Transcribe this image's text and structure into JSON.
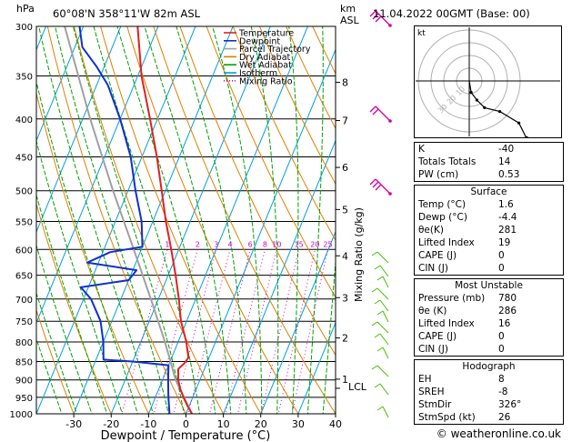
{
  "header": {
    "location": "60°08'N  358°11'W  82m  ASL",
    "datetime": "11.04.2022  00GMT  (Base: 00)"
  },
  "axes": {
    "pressure_unit": "hPa",
    "height_unit_line1": "km",
    "height_unit_line2": "ASL",
    "mixing_ratio_label": "Mixing Ratio (g/kg)",
    "xlabel": "Dewpoint / Temperature (°C)",
    "lcl_label": "LCL"
  },
  "legend": [
    {
      "label": "Temperature",
      "color": "#e02020",
      "style": "solid"
    },
    {
      "label": "Dewpoint",
      "color": "#1030d0",
      "style": "solid"
    },
    {
      "label": "Parcel Trajectory",
      "color": "#a0a0a0",
      "style": "solid"
    },
    {
      "label": "Dry Adiabat",
      "color": "#e08000",
      "style": "solid"
    },
    {
      "label": "Wet Adiabat",
      "color": "#00a000",
      "style": "solid"
    },
    {
      "label": "Isotherm",
      "color": "#00a0e0",
      "style": "solid"
    },
    {
      "label": "Mixing Ratio",
      "color": "#d000d0",
      "style": "dotted"
    }
  ],
  "chart_data": {
    "type": "skew-t",
    "pressure_levels": [
      300,
      350,
      400,
      450,
      500,
      550,
      600,
      650,
      700,
      750,
      800,
      850,
      900,
      950,
      1000
    ],
    "temperature_ticks": [
      -30,
      -20,
      -10,
      0,
      10,
      20,
      30,
      40
    ],
    "xlim": [
      -40,
      40
    ],
    "ylim_hpa": [
      1000,
      300
    ],
    "height_km_ticks": [
      {
        "label": "8",
        "p": 357
      },
      {
        "label": "7",
        "p": 402
      },
      {
        "label": "6",
        "p": 465
      },
      {
        "label": "5",
        "p": 530
      },
      {
        "label": "4",
        "p": 612
      },
      {
        "label": "3",
        "p": 697
      },
      {
        "label": "2",
        "p": 790
      },
      {
        "label": "1",
        "p": 898
      }
    ],
    "mixing_ratio_values": [
      "1",
      "2",
      "3",
      "4",
      "6",
      "8",
      "10",
      "15",
      "20",
      "25"
    ],
    "temperature_profile": [
      {
        "p": 1000,
        "t": 1.6
      },
      {
        "p": 975,
        "t": -0.5
      },
      {
        "p": 950,
        "t": -2.5
      },
      {
        "p": 925,
        "t": -4.3
      },
      {
        "p": 900,
        "t": -5.8
      },
      {
        "p": 870,
        "t": -7.0
      },
      {
        "p": 855,
        "t": -6.0
      },
      {
        "p": 840,
        "t": -5.5
      },
      {
        "p": 800,
        "t": -7.8
      },
      {
        "p": 750,
        "t": -11.5
      },
      {
        "p": 700,
        "t": -14.5
      },
      {
        "p": 650,
        "t": -18.0
      },
      {
        "p": 600,
        "t": -22.0
      },
      {
        "p": 550,
        "t": -26.5
      },
      {
        "p": 500,
        "t": -31.0
      },
      {
        "p": 450,
        "t": -36.0
      },
      {
        "p": 400,
        "t": -42.0
      },
      {
        "p": 350,
        "t": -49.0
      },
      {
        "p": 300,
        "t": -55.5
      }
    ],
    "dewpoint_profile": [
      {
        "p": 1000,
        "t": -4.4
      },
      {
        "p": 950,
        "t": -6.5
      },
      {
        "p": 900,
        "t": -8.5
      },
      {
        "p": 860,
        "t": -10.0
      },
      {
        "p": 850,
        "t": -20.0
      },
      {
        "p": 845,
        "t": -28.0
      },
      {
        "p": 800,
        "t": -30.0
      },
      {
        "p": 750,
        "t": -33.0
      },
      {
        "p": 700,
        "t": -38.0
      },
      {
        "p": 675,
        "t": -42.0
      },
      {
        "p": 660,
        "t": -30.0
      },
      {
        "p": 640,
        "t": -29.0
      },
      {
        "p": 625,
        "t": -43.0
      },
      {
        "p": 605,
        "t": -38.0
      },
      {
        "p": 595,
        "t": -30.0
      },
      {
        "p": 550,
        "t": -33.0
      },
      {
        "p": 500,
        "t": -38.0
      },
      {
        "p": 450,
        "t": -43.0
      },
      {
        "p": 400,
        "t": -50.0
      },
      {
        "p": 360,
        "t": -57.0
      },
      {
        "p": 340,
        "t": -62.0
      },
      {
        "p": 320,
        "t": -68.0
      },
      {
        "p": 300,
        "t": -71.0
      }
    ],
    "parcel_profile": [
      {
        "p": 1000,
        "t": 1.6
      },
      {
        "p": 900,
        "t": -6.5
      },
      {
        "p": 800,
        "t": -13.5
      },
      {
        "p": 700,
        "t": -22.0
      },
      {
        "p": 600,
        "t": -32.0
      },
      {
        "p": 500,
        "t": -44.0
      },
      {
        "p": 400,
        "t": -58.0
      },
      {
        "p": 300,
        "t": -75.0
      }
    ]
  },
  "hodograph": {
    "unit": "kt",
    "ring_labels": [
      "10",
      "20",
      "30"
    ],
    "trace": [
      {
        "u": 0,
        "v": 0
      },
      {
        "u": 0.5,
        "v": -3
      },
      {
        "u": 2,
        "v": -5
      },
      {
        "u": 4,
        "v": -7
      },
      {
        "u": 8,
        "v": -8
      },
      {
        "u": 13,
        "v": -11
      },
      {
        "u": 15,
        "v": -15
      }
    ]
  },
  "indices": {
    "k": {
      "label": "K",
      "value": "-40"
    },
    "totals": {
      "label": "Totals Totals",
      "value": "14"
    },
    "pw": {
      "label": "PW (cm)",
      "value": "0.53"
    }
  },
  "surface": {
    "title": "Surface",
    "temp": {
      "label": "Temp (°C)",
      "value": "1.6"
    },
    "dewp": {
      "label": "Dewp (°C)",
      "value": "-4.4"
    },
    "thetae": {
      "label": "θe(K)",
      "value": "281"
    },
    "li": {
      "label": "Lifted Index",
      "value": "19"
    },
    "cape": {
      "label": "CAPE (J)",
      "value": "0"
    },
    "cin": {
      "label": "CIN (J)",
      "value": "0"
    }
  },
  "most_unstable": {
    "title": "Most Unstable",
    "pressure": {
      "label": "Pressure (mb)",
      "value": "780"
    },
    "thetae": {
      "label": "θe (K)",
      "value": "286"
    },
    "li": {
      "label": "Lifted Index",
      "value": "16"
    },
    "cape": {
      "label": "CAPE (J)",
      "value": "0"
    },
    "cin": {
      "label": "CIN (J)",
      "value": "0"
    }
  },
  "hodo_params": {
    "title": "Hodograph",
    "eh": {
      "label": "EH",
      "value": "8"
    },
    "sreh": {
      "label": "SREH",
      "value": "-8"
    },
    "stmdir": {
      "label": "StmDir",
      "value": "326°"
    },
    "stmspd": {
      "label": "StmSpd (kt)",
      "value": "26"
    }
  },
  "copyright": "© weatheronline.co.uk",
  "colors": {
    "temperature": "#e02020",
    "dewpoint": "#1030d0",
    "parcel": "#a0a0a0",
    "dry": "#e08000",
    "wet": "#00a000",
    "iso": "#00a0e0",
    "mix": "#d000d0",
    "barb_upper": "#d000a0",
    "barb_lower": "#40c000"
  }
}
